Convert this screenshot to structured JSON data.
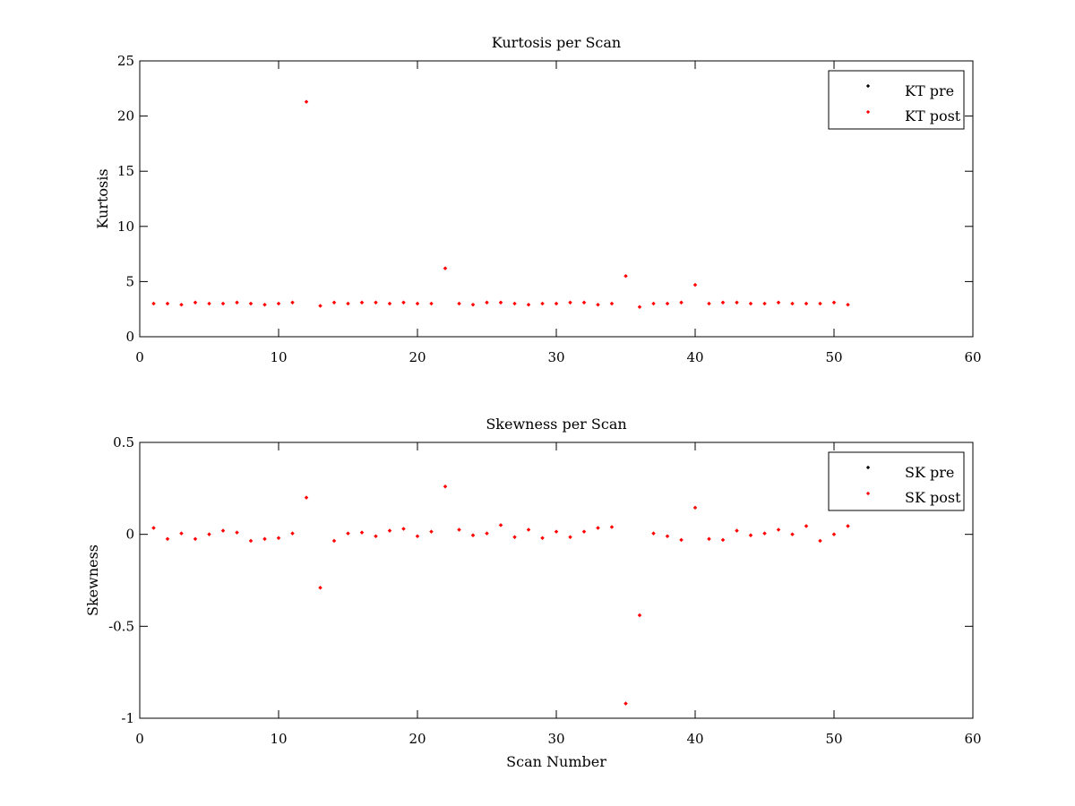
{
  "chart_data": [
    {
      "type": "scatter",
      "title": "Kurtosis per Scan",
      "xlabel": "",
      "ylabel": "Kurtosis",
      "xlim": [
        0,
        60
      ],
      "ylim": [
        0,
        25
      ],
      "xticks": [
        "0",
        "10",
        "20",
        "30",
        "40",
        "50",
        "60"
      ],
      "yticks": [
        "0",
        "5",
        "10",
        "15",
        "20",
        "25"
      ],
      "grid": false,
      "legend_position": "top-right",
      "series": [
        {
          "name": "KT pre",
          "color": "#000000",
          "x": [],
          "y": []
        },
        {
          "name": "KT post",
          "color": "#ff0000",
          "x": [
            1,
            2,
            3,
            4,
            5,
            6,
            7,
            8,
            9,
            10,
            11,
            12,
            13,
            14,
            15,
            16,
            17,
            18,
            19,
            20,
            21,
            22,
            23,
            24,
            25,
            26,
            27,
            28,
            29,
            30,
            31,
            32,
            33,
            34,
            35,
            36,
            37,
            38,
            39,
            40,
            41,
            42,
            43,
            44,
            45,
            46,
            47,
            48,
            49,
            50,
            51
          ],
          "y": [
            3.0,
            3.0,
            2.9,
            3.1,
            3.0,
            3.0,
            3.1,
            3.0,
            2.9,
            3.0,
            3.1,
            21.3,
            2.8,
            3.1,
            3.0,
            3.1,
            3.1,
            3.0,
            3.1,
            3.0,
            3.0,
            6.2,
            3.0,
            2.9,
            3.1,
            3.1,
            3.0,
            2.9,
            3.0,
            3.0,
            3.1,
            3.1,
            2.9,
            3.0,
            5.5,
            2.7,
            3.0,
            3.0,
            3.1,
            4.7,
            3.0,
            3.1,
            3.1,
            3.0,
            3.0,
            3.1,
            3.0,
            3.0,
            3.0,
            3.1,
            2.9
          ]
        }
      ]
    },
    {
      "type": "scatter",
      "title": "Skewness per Scan",
      "xlabel": "Scan Number",
      "ylabel": "Skewness",
      "xlim": [
        0,
        60
      ],
      "ylim": [
        -1,
        0.5
      ],
      "xticks": [
        "0",
        "10",
        "20",
        "30",
        "40",
        "50",
        "60"
      ],
      "yticks": [
        "-1",
        "-0.5",
        "0",
        "0.5"
      ],
      "grid": false,
      "legend_position": "top-right",
      "series": [
        {
          "name": "SK pre",
          "color": "#000000",
          "x": [],
          "y": []
        },
        {
          "name": "SK post",
          "color": "#ff0000",
          "x": [
            1,
            2,
            3,
            4,
            5,
            6,
            7,
            8,
            9,
            10,
            11,
            12,
            13,
            14,
            15,
            16,
            17,
            18,
            19,
            20,
            21,
            22,
            23,
            24,
            25,
            26,
            27,
            28,
            29,
            30,
            31,
            32,
            33,
            34,
            35,
            36,
            37,
            38,
            39,
            40,
            41,
            42,
            43,
            44,
            45,
            46,
            47,
            48,
            49,
            50,
            51
          ],
          "y": [
            0.035,
            -0.025,
            0.005,
            -0.025,
            0.0,
            0.02,
            0.01,
            -0.035,
            -0.025,
            -0.02,
            0.005,
            0.2,
            -0.29,
            -0.035,
            0.005,
            0.01,
            -0.01,
            0.02,
            0.03,
            -0.01,
            0.015,
            0.26,
            0.025,
            -0.005,
            0.005,
            0.05,
            -0.015,
            0.025,
            -0.02,
            0.015,
            -0.015,
            0.015,
            0.035,
            0.04,
            -0.92,
            -0.44,
            0.005,
            -0.01,
            -0.03,
            0.145,
            -0.025,
            -0.03,
            0.02,
            -0.005,
            0.005,
            0.025,
            0.0,
            0.045,
            -0.035,
            0.0,
            0.045
          ]
        }
      ]
    }
  ]
}
